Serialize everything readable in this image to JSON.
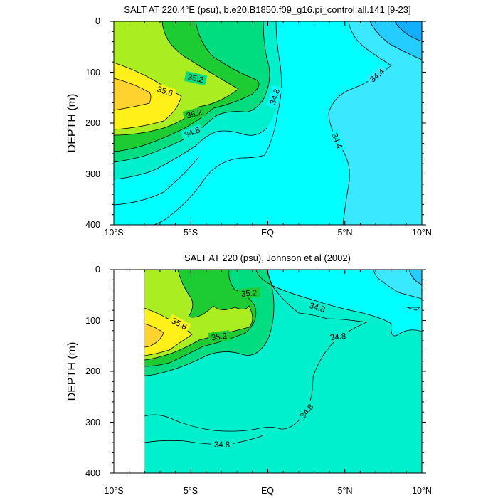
{
  "chart_data": [
    {
      "type": "contour",
      "title": "SALT AT 220.4°E (psu), b.e20.B1850.f09_g16.pi_control.all.141 [9-23]",
      "ylabel": "DEPTH (m)",
      "xlim": [
        -10,
        10
      ],
      "ylim": [
        400,
        0
      ],
      "x_ticks": [
        -10,
        -5,
        0,
        5,
        10
      ],
      "x_tick_labels": [
        "10°S",
        "5°S",
        "EQ",
        "5°N",
        "10°N"
      ],
      "y_ticks": [
        0,
        100,
        200,
        300,
        400
      ],
      "y_tick_labels": [
        "0",
        "100",
        "200",
        "300",
        "400"
      ],
      "contour_levels": [
        34.0,
        34.2,
        34.4,
        34.6,
        34.8,
        35.0,
        35.2,
        35.4,
        35.6,
        35.8
      ],
      "contour_labels": [
        {
          "text": "35.2",
          "x": -4.8,
          "y": 108,
          "angle": 12
        },
        {
          "text": "35.6",
          "x": -6.7,
          "y": 132,
          "angle": 18
        },
        {
          "text": "35.2",
          "x": -5.1,
          "y": 178,
          "angle": -15
        },
        {
          "text": "34.8",
          "x": -5.2,
          "y": 217,
          "angle": -22
        },
        {
          "text": "34.8",
          "x": 0.4,
          "y": 155,
          "angle": -72
        },
        {
          "text": "34.4",
          "x": 7.1,
          "y": 104,
          "angle": -40
        },
        {
          "text": "34.4",
          "x": 3.5,
          "y": 235,
          "angle": 68
        }
      ]
    },
    {
      "type": "contour",
      "title": "SALT AT 220 (psu), Johnson et al (2002)",
      "ylabel": "DEPTH (m)",
      "xlim": [
        -10,
        10
      ],
      "ylim": [
        400,
        0
      ],
      "data_x_range": [
        -8,
        10
      ],
      "x_ticks": [
        -10,
        -5,
        0,
        5,
        10
      ],
      "x_tick_labels": [
        "10°S",
        "5°S",
        "EQ",
        "5°N",
        "10°N"
      ],
      "y_ticks": [
        0,
        100,
        200,
        300,
        400
      ],
      "y_tick_labels": [
        "0",
        "100",
        "200",
        "300",
        "400"
      ],
      "contour_levels": [
        34.0,
        34.2,
        34.4,
        34.6,
        34.8,
        35.0,
        35.2,
        35.4,
        35.6,
        35.8
      ],
      "contour_labels": [
        {
          "text": "35.2",
          "x": -1.2,
          "y": 48,
          "angle": -5
        },
        {
          "text": "35.6",
          "x": -5.2,
          "y": 112,
          "angle": 28
        },
        {
          "text": "35.2",
          "x": -3.1,
          "y": 130,
          "angle": -8
        },
        {
          "text": "34.8",
          "x": 3.2,
          "y": 78,
          "angle": 18
        },
        {
          "text": "34.8",
          "x": 4.6,
          "y": 138,
          "angle": -6
        },
        {
          "text": "34.8",
          "x": 2.5,
          "y": 282,
          "angle": -50
        },
        {
          "text": "34.8",
          "x": -2.9,
          "y": 343,
          "angle": 0
        }
      ]
    }
  ]
}
